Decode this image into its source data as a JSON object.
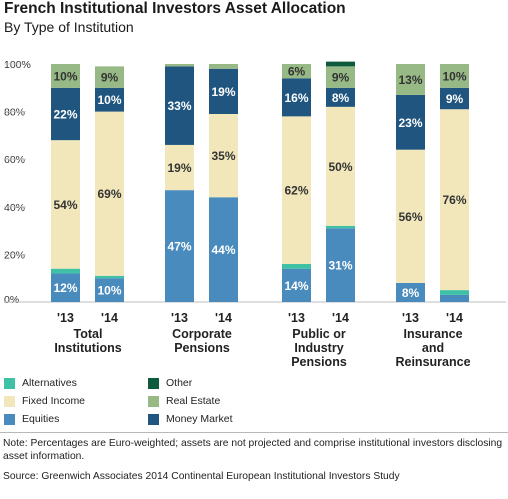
{
  "chart_data": {
    "type": "bar",
    "stacked": true,
    "title": "French Institutional Investors Asset Allocation",
    "subtitle": "By Type of Institution",
    "ylim": [
      0,
      100
    ],
    "yticks": [
      "0%",
      "20%",
      "40%",
      "60%",
      "80%",
      "100%"
    ],
    "grid": false,
    "groups": [
      "Total\nInstitutions",
      "Corporate\nPensions",
      "Public or\nIndustry\nPensions",
      "Insurance\nand\nReinsurance"
    ],
    "bars": [
      {
        "group": 0,
        "year": "'13",
        "values": {
          "Equities": 12,
          "Alternatives": 2,
          "Fixed Income": 54,
          "Money Market": 22,
          "Real Estate": 10,
          "Other": 0
        }
      },
      {
        "group": 0,
        "year": "'14",
        "values": {
          "Equities": 10,
          "Alternatives": 1,
          "Fixed Income": 69,
          "Money Market": 10,
          "Real Estate": 9,
          "Other": 0
        }
      },
      {
        "group": 1,
        "year": "'13",
        "values": {
          "Equities": 47,
          "Alternatives": 0,
          "Fixed Income": 19,
          "Money Market": 33,
          "Real Estate": 1,
          "Other": 0
        }
      },
      {
        "group": 1,
        "year": "'14",
        "values": {
          "Equities": 44,
          "Alternatives": 0,
          "Fixed Income": 35,
          "Money Market": 19,
          "Real Estate": 2,
          "Other": 0
        }
      },
      {
        "group": 2,
        "year": "'13",
        "values": {
          "Equities": 14,
          "Alternatives": 2,
          "Fixed Income": 62,
          "Money Market": 16,
          "Real Estate": 6,
          "Other": 0
        }
      },
      {
        "group": 2,
        "year": "'14",
        "values": {
          "Equities": 31,
          "Alternatives": 1,
          "Fixed Income": 50,
          "Money Market": 8,
          "Real Estate": 9,
          "Other": 2
        }
      },
      {
        "group": 3,
        "year": "'13",
        "values": {
          "Equities": 8,
          "Alternatives": 0,
          "Fixed Income": 56,
          "Money Market": 23,
          "Real Estate": 13,
          "Other": 0
        }
      },
      {
        "group": 3,
        "year": "'14",
        "values": {
          "Equities": 3,
          "Alternatives": 2,
          "Fixed Income": 76,
          "Money Market": 9,
          "Real Estate": 10,
          "Other": 0
        }
      }
    ],
    "stack_order": [
      "Equities",
      "Alternatives",
      "Fixed Income",
      "Money Market",
      "Real Estate",
      "Other"
    ],
    "labels": [
      {
        "bar": 0,
        "segment": "Equities",
        "text": "12%"
      },
      {
        "bar": 0,
        "segment": "Fixed Income",
        "text": "54%"
      },
      {
        "bar": 0,
        "segment": "Money Market",
        "text": "22%"
      },
      {
        "bar": 0,
        "segment": "Real Estate",
        "text": "10%"
      },
      {
        "bar": 1,
        "segment": "Equities",
        "text": "10%"
      },
      {
        "bar": 1,
        "segment": "Fixed Income",
        "text": "69%"
      },
      {
        "bar": 1,
        "segment": "Money Market",
        "text": "10%"
      },
      {
        "bar": 1,
        "segment": "Real Estate",
        "text": "9%"
      },
      {
        "bar": 2,
        "segment": "Equities",
        "text": "47%"
      },
      {
        "bar": 2,
        "segment": "Fixed Income",
        "text": "19%"
      },
      {
        "bar": 2,
        "segment": "Money Market",
        "text": "33%"
      },
      {
        "bar": 3,
        "segment": "Equities",
        "text": "44%"
      },
      {
        "bar": 3,
        "segment": "Fixed Income",
        "text": "35%"
      },
      {
        "bar": 3,
        "segment": "Money Market",
        "text": "19%"
      },
      {
        "bar": 4,
        "segment": "Equities",
        "text": "14%"
      },
      {
        "bar": 4,
        "segment": "Fixed Income",
        "text": "62%"
      },
      {
        "bar": 4,
        "segment": "Money Market",
        "text": "16%"
      },
      {
        "bar": 4,
        "segment": "Real Estate",
        "text": "6%"
      },
      {
        "bar": 5,
        "segment": "Equities",
        "text": "31%"
      },
      {
        "bar": 5,
        "segment": "Fixed Income",
        "text": "50%"
      },
      {
        "bar": 5,
        "segment": "Money Market",
        "text": "8%"
      },
      {
        "bar": 5,
        "segment": "Real Estate",
        "text": "9%"
      },
      {
        "bar": 6,
        "segment": "Equities",
        "text": "8%"
      },
      {
        "bar": 6,
        "segment": "Fixed Income",
        "text": "56%"
      },
      {
        "bar": 6,
        "segment": "Money Market",
        "text": "23%"
      },
      {
        "bar": 6,
        "segment": "Real Estate",
        "text": "13%"
      },
      {
        "bar": 7,
        "segment": "Fixed Income",
        "text": "76%"
      },
      {
        "bar": 7,
        "segment": "Money Market",
        "text": "9%"
      },
      {
        "bar": 7,
        "segment": "Real Estate",
        "text": "10%"
      }
    ],
    "colors": {
      "Equities": "#4a8bbd",
      "Alternatives": "#3fc1a6",
      "Fixed Income": "#f1e7bb",
      "Money Market": "#1f557e",
      "Real Estate": "#97b985",
      "Other": "#0d5a3c"
    },
    "legend": [
      {
        "label": "Alternatives",
        "series": "Alternatives"
      },
      {
        "label": "Other",
        "series": "Other"
      },
      {
        "label": "Fixed Income",
        "series": "Fixed Income"
      },
      {
        "label": "Real Estate",
        "series": "Real Estate"
      },
      {
        "label": "Equities",
        "series": "Equities"
      },
      {
        "label": "Money Market",
        "series": "Money Market"
      }
    ],
    "legend_placement": "bottom-left"
  },
  "note": "Note: Percentages are Euro-weighted; assets are not projected and comprise institutional investors disclosing asset information.",
  "source": "Source: Greenwich Associates 2014 Continental European Institutional Investors Study"
}
